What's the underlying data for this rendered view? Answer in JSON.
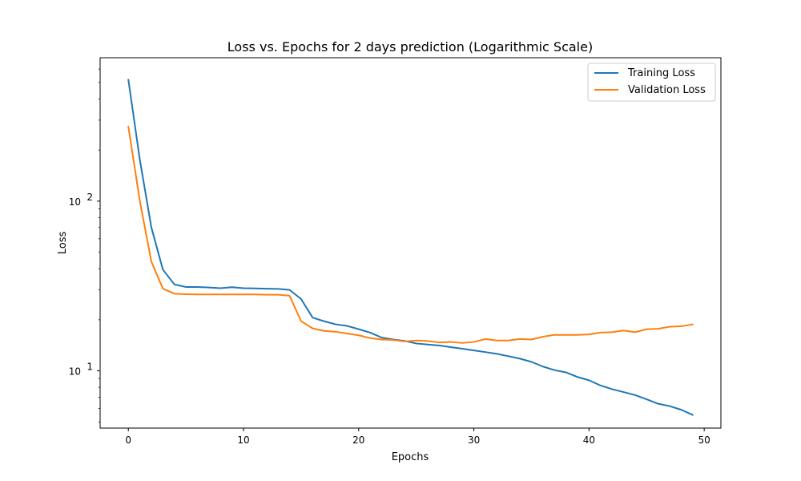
{
  "chart_data": {
    "type": "line",
    "title": "Loss vs. Epochs for 2 days prediction (Logarithmic Scale)",
    "xlabel": "Epochs",
    "ylabel": "Loss",
    "x_scale": "linear",
    "y_scale": "log",
    "xlim": [
      -2.45,
      51.45
    ],
    "ylim": [
      4.6,
      700
    ],
    "x_ticks": [
      0,
      10,
      20,
      30,
      40,
      50
    ],
    "y_major_ticks": [
      10,
      100
    ],
    "y_major_tick_labels": [
      "10^1",
      "10^2"
    ],
    "y_minor_ticks": [
      5,
      6,
      7,
      8,
      9,
      20,
      30,
      40,
      50,
      60,
      70,
      80,
      90,
      200,
      300,
      400,
      500,
      600
    ],
    "grid": false,
    "legend_position": "top-right",
    "x": [
      0,
      1,
      2,
      3,
      4,
      5,
      6,
      7,
      8,
      9,
      10,
      11,
      12,
      13,
      14,
      15,
      16,
      17,
      18,
      19,
      20,
      21,
      22,
      23,
      24,
      25,
      26,
      27,
      28,
      29,
      30,
      31,
      32,
      33,
      34,
      35,
      36,
      37,
      38,
      39,
      40,
      41,
      42,
      43,
      44,
      45,
      46,
      47,
      48,
      49
    ],
    "series": [
      {
        "name": "Training Loss",
        "color": "#1f77b4",
        "values": [
          520,
          175,
          70,
          39.5,
          32.3,
          31.2,
          31.2,
          31.0,
          30.7,
          31.1,
          30.7,
          30.6,
          30.5,
          30.4,
          30.0,
          26.5,
          20.6,
          19.6,
          18.8,
          18.4,
          17.6,
          16.8,
          15.7,
          15.3,
          15.0,
          14.5,
          14.3,
          14.1,
          13.8,
          13.5,
          13.2,
          12.9,
          12.6,
          12.2,
          11.8,
          11.3,
          10.6,
          10.1,
          9.8,
          9.2,
          8.8,
          8.2,
          7.8,
          7.5,
          7.2,
          6.8,
          6.4,
          6.2,
          5.9,
          5.5
        ]
      },
      {
        "name": "Validation Loss",
        "color": "#ff7f0e",
        "values": [
          275,
          100,
          44,
          30.5,
          28.5,
          28.3,
          28.2,
          28.2,
          28.2,
          28.2,
          28.2,
          28.2,
          28.1,
          28.1,
          27.7,
          19.6,
          17.8,
          17.2,
          17.0,
          16.6,
          16.2,
          15.6,
          15.3,
          15.2,
          14.9,
          15.1,
          15.0,
          14.7,
          14.8,
          14.6,
          14.8,
          15.4,
          15.1,
          15.1,
          15.4,
          15.3,
          15.9,
          16.3,
          16.3,
          16.3,
          16.4,
          16.8,
          16.9,
          17.3,
          16.9,
          17.6,
          17.7,
          18.2,
          18.3,
          18.8
        ]
      }
    ]
  }
}
